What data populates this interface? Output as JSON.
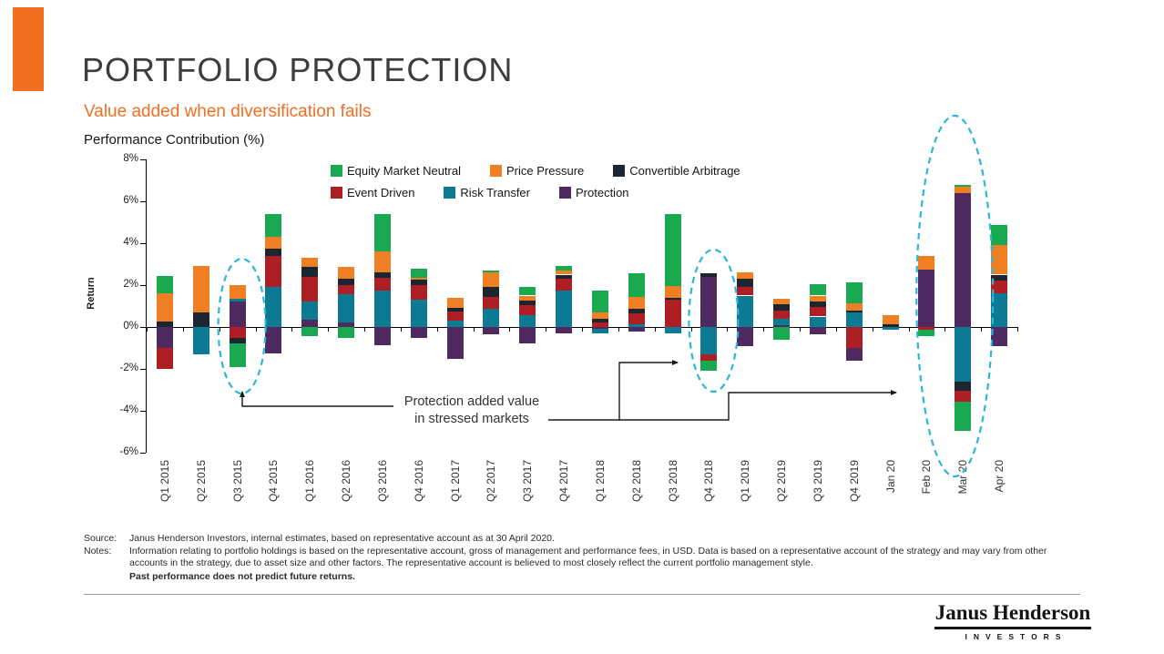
{
  "page": {
    "title": "PORTFOLIO PROTECTION",
    "subtitle": "Value added when diversification fails",
    "chart_heading": "Performance Contribution (%)"
  },
  "annotation": {
    "line1": "Protection added value",
    "line2": "in stressed markets"
  },
  "footer": {
    "source_label": "Source:",
    "source_text": "Janus Henderson Investors, internal estimates, based on representative account as at 30 April 2020.",
    "notes_label": "Notes:",
    "notes_text": "Information relating to portfolio holdings is based on the representative account, gross of management and performance fees, in USD. Data is based on a representative account of the strategy and may vary from other accounts in the strategy, due to asset size and other factors. The representative account is believed to most closely reflect the current portfolio management style.",
    "disclaimer": "Past performance does not predict future returns."
  },
  "brand": {
    "name": "Janus Henderson",
    "subtext": "INVESTORS",
    "accent_color": "#F36F21"
  },
  "chart_data": {
    "type": "bar",
    "stacked": true,
    "title": "Performance Contribution (%)",
    "ylabel": "Return",
    "ylim": [
      -6,
      8
    ],
    "grid": false,
    "legend_position": "top-inside",
    "highlight_color": "#2BB7DA",
    "highlights": [
      "Q3 2015",
      "Q4 2018",
      "Mar 20"
    ],
    "annotation": "Protection added value in stressed markets",
    "yticks": [
      {
        "v": 8,
        "label": "8%"
      },
      {
        "v": 6,
        "label": "6%"
      },
      {
        "v": 4,
        "label": "4%"
      },
      {
        "v": 2,
        "label": "2%"
      },
      {
        "v": 0,
        "label": "0%"
      },
      {
        "v": -2,
        "label": "-2%"
      },
      {
        "v": -4,
        "label": "-4%"
      },
      {
        "v": -6,
        "label": "-6%"
      }
    ],
    "series": [
      {
        "name": "Equity Market Neutral",
        "color": "#19A951"
      },
      {
        "name": "Price Pressure",
        "color": "#EE7F22"
      },
      {
        "name": "Convertible Arbitrage",
        "color": "#1C2630"
      },
      {
        "name": "Event Driven",
        "color": "#AE1F25"
      },
      {
        "name": "Risk Transfer",
        "color": "#0C7A93"
      },
      {
        "name": "Protection",
        "color": "#4E2A60"
      }
    ],
    "bars": [
      {
        "label": "Q1 2015",
        "segments": [
          {
            "s": "Convertible Arbitrage",
            "v": 0.25
          },
          {
            "s": "Price Pressure",
            "v": 1.35
          },
          {
            "s": "Equity Market Neutral",
            "v": 0.85
          },
          {
            "s": "Protection",
            "v": -1.0
          },
          {
            "s": "Event Driven",
            "v": -1.0
          }
        ]
      },
      {
        "label": "Q2 2015",
        "segments": [
          {
            "s": "Convertible Arbitrage",
            "v": 0.7
          },
          {
            "s": "Price Pressure",
            "v": 2.2
          },
          {
            "s": "Risk Transfer",
            "v": -1.3
          }
        ]
      },
      {
        "label": "Q3 2015",
        "segments": [
          {
            "s": "Protection",
            "v": 1.2
          },
          {
            "s": "Risk Transfer",
            "v": 0.15
          },
          {
            "s": "Price Pressure",
            "v": 0.65
          },
          {
            "s": "Event Driven",
            "v": -0.5
          },
          {
            "s": "Convertible Arbitrage",
            "v": -0.3
          },
          {
            "s": "Equity Market Neutral",
            "v": -1.1
          }
        ]
      },
      {
        "label": "Q4 2015",
        "segments": [
          {
            "s": "Risk Transfer",
            "v": 1.9
          },
          {
            "s": "Event Driven",
            "v": 1.5
          },
          {
            "s": "Convertible Arbitrage",
            "v": 0.35
          },
          {
            "s": "Price Pressure",
            "v": 0.55
          },
          {
            "s": "Equity Market Neutral",
            "v": 1.1
          },
          {
            "s": "Protection",
            "v": -1.25
          }
        ]
      },
      {
        "label": "Q1 2016",
        "segments": [
          {
            "s": "Protection",
            "v": 0.35
          },
          {
            "s": "Risk Transfer",
            "v": 0.85
          },
          {
            "s": "Event Driven",
            "v": 1.2
          },
          {
            "s": "Convertible Arbitrage",
            "v": 0.45
          },
          {
            "s": "Price Pressure",
            "v": 0.45
          },
          {
            "s": "Equity Market Neutral",
            "v": -0.45
          }
        ]
      },
      {
        "label": "Q2 2016",
        "segments": [
          {
            "s": "Protection",
            "v": 0.2
          },
          {
            "s": "Risk Transfer",
            "v": 1.35
          },
          {
            "s": "Event Driven",
            "v": 0.45
          },
          {
            "s": "Convertible Arbitrage",
            "v": 0.3
          },
          {
            "s": "Price Pressure",
            "v": 0.55
          },
          {
            "s": "Equity Market Neutral",
            "v": -0.5
          }
        ]
      },
      {
        "label": "Q3 2016",
        "segments": [
          {
            "s": "Risk Transfer",
            "v": 1.75
          },
          {
            "s": "Event Driven",
            "v": 0.6
          },
          {
            "s": "Convertible Arbitrage",
            "v": 0.25
          },
          {
            "s": "Price Pressure",
            "v": 1.0
          },
          {
            "s": "Equity Market Neutral",
            "v": 1.8
          },
          {
            "s": "Protection",
            "v": -0.85
          }
        ]
      },
      {
        "label": "Q4 2016",
        "segments": [
          {
            "s": "Risk Transfer",
            "v": 1.3
          },
          {
            "s": "Event Driven",
            "v": 0.7
          },
          {
            "s": "Convertible Arbitrage",
            "v": 0.25
          },
          {
            "s": "Price Pressure",
            "v": 0.1
          },
          {
            "s": "Equity Market Neutral",
            "v": 0.45
          },
          {
            "s": "Protection",
            "v": -0.5
          }
        ]
      },
      {
        "label": "Q1 2017",
        "segments": [
          {
            "s": "Risk Transfer",
            "v": 0.3
          },
          {
            "s": "Event Driven",
            "v": 0.45
          },
          {
            "s": "Convertible Arbitrage",
            "v": 0.18
          },
          {
            "s": "Price Pressure",
            "v": 0.47
          },
          {
            "s": "Protection",
            "v": -1.5
          }
        ]
      },
      {
        "label": "Q2 2017",
        "segments": [
          {
            "s": "Risk Transfer",
            "v": 0.85
          },
          {
            "s": "Event Driven",
            "v": 0.6
          },
          {
            "s": "Convertible Arbitrage",
            "v": 0.45
          },
          {
            "s": "Price Pressure",
            "v": 0.7
          },
          {
            "s": "Equity Market Neutral",
            "v": 0.1
          },
          {
            "s": "Protection",
            "v": -0.35
          }
        ]
      },
      {
        "label": "Q3 2017",
        "segments": [
          {
            "s": "Risk Transfer",
            "v": 0.55
          },
          {
            "s": "Event Driven",
            "v": 0.5
          },
          {
            "s": "Convertible Arbitrage",
            "v": 0.2
          },
          {
            "s": "Price Pressure",
            "v": 0.25
          },
          {
            "s": "Equity Market Neutral",
            "v": 0.4
          },
          {
            "s": "Protection",
            "v": -0.8
          }
        ]
      },
      {
        "label": "Q4 2017",
        "segments": [
          {
            "s": "Risk Transfer",
            "v": 1.75
          },
          {
            "s": "Event Driven",
            "v": 0.55
          },
          {
            "s": "Convertible Arbitrage",
            "v": 0.2
          },
          {
            "s": "Price Pressure",
            "v": 0.2
          },
          {
            "s": "Equity Market Neutral",
            "v": 0.2
          },
          {
            "s": "Protection",
            "v": -0.3
          }
        ]
      },
      {
        "label": "Q1 2018",
        "segments": [
          {
            "s": "Event Driven",
            "v": 0.2
          },
          {
            "s": "Convertible Arbitrage",
            "v": 0.2
          },
          {
            "s": "Price Pressure",
            "v": 0.3
          },
          {
            "s": "Equity Market Neutral",
            "v": 1.05
          },
          {
            "s": "Protection",
            "v": -0.1
          },
          {
            "s": "Risk Transfer",
            "v": -0.2
          }
        ]
      },
      {
        "label": "Q2 2018",
        "segments": [
          {
            "s": "Risk Transfer",
            "v": 0.15
          },
          {
            "s": "Event Driven",
            "v": 0.5
          },
          {
            "s": "Convertible Arbitrage",
            "v": 0.2
          },
          {
            "s": "Price Pressure",
            "v": 0.6
          },
          {
            "s": "Equity Market Neutral",
            "v": 1.1
          },
          {
            "s": "Protection",
            "v": -0.2
          }
        ]
      },
      {
        "label": "Q3 2018",
        "segments": [
          {
            "s": "Event Driven",
            "v": 1.3
          },
          {
            "s": "Convertible Arbitrage",
            "v": 0.1
          },
          {
            "s": "Price Pressure",
            "v": 0.55
          },
          {
            "s": "Equity Market Neutral",
            "v": 3.45
          },
          {
            "s": "Risk Transfer",
            "v": -0.3
          }
        ]
      },
      {
        "label": "Q4 2018",
        "segments": [
          {
            "s": "Protection",
            "v": 2.4
          },
          {
            "s": "Convertible Arbitrage",
            "v": 0.15
          },
          {
            "s": "Risk Transfer",
            "v": -1.3
          },
          {
            "s": "Event Driven",
            "v": -0.3
          },
          {
            "s": "Equity Market Neutral",
            "v": -0.5
          }
        ]
      },
      {
        "label": "Q1 2019",
        "segments": [
          {
            "s": "Risk Transfer",
            "v": 1.5
          },
          {
            "s": "Event Driven",
            "v": 0.4
          },
          {
            "s": "Convertible Arbitrage",
            "v": 0.4
          },
          {
            "s": "Price Pressure",
            "v": 0.3
          },
          {
            "s": "Protection",
            "v": -0.9
          }
        ]
      },
      {
        "label": "Q2 2019",
        "segments": [
          {
            "s": "Protection",
            "v": 0.1
          },
          {
            "s": "Risk Transfer",
            "v": 0.3
          },
          {
            "s": "Event Driven",
            "v": 0.4
          },
          {
            "s": "Convertible Arbitrage",
            "v": 0.3
          },
          {
            "s": "Price Pressure",
            "v": 0.25
          },
          {
            "s": "Equity Market Neutral",
            "v": -0.6
          }
        ]
      },
      {
        "label": "Q3 2019",
        "segments": [
          {
            "s": "Risk Transfer",
            "v": 0.5
          },
          {
            "s": "Event Driven",
            "v": 0.45
          },
          {
            "s": "Convertible Arbitrage",
            "v": 0.25
          },
          {
            "s": "Price Pressure",
            "v": 0.3
          },
          {
            "s": "Equity Market Neutral",
            "v": 0.55
          },
          {
            "s": "Protection",
            "v": -0.35
          }
        ]
      },
      {
        "label": "Q4 2019",
        "segments": [
          {
            "s": "Risk Transfer",
            "v": 0.7
          },
          {
            "s": "Convertible Arbitrage",
            "v": 0.1
          },
          {
            "s": "Price Pressure",
            "v": 0.35
          },
          {
            "s": "Equity Market Neutral",
            "v": 1.0
          },
          {
            "s": "Event Driven",
            "v": -1.0
          },
          {
            "s": "Protection",
            "v": -0.6
          }
        ]
      },
      {
        "label": "Jan 20",
        "segments": [
          {
            "s": "Convertible Arbitrage",
            "v": 0.12
          },
          {
            "s": "Price Pressure",
            "v": 0.45
          },
          {
            "s": "Risk Transfer",
            "v": -0.15
          }
        ]
      },
      {
        "label": "Feb 20",
        "segments": [
          {
            "s": "Protection",
            "v": 2.75
          },
          {
            "s": "Price Pressure",
            "v": 0.65
          },
          {
            "s": "Event Driven",
            "v": -0.15
          },
          {
            "s": "Equity Market Neutral",
            "v": -0.3
          }
        ]
      },
      {
        "label": "Mar 20",
        "segments": [
          {
            "s": "Protection",
            "v": 6.4
          },
          {
            "s": "Price Pressure",
            "v": 0.3
          },
          {
            "s": "Equity Market Neutral",
            "v": 0.1
          },
          {
            "s": "Risk Transfer",
            "v": -2.6
          },
          {
            "s": "Convertible Arbitrage",
            "v": -0.45
          },
          {
            "s": "Event Driven",
            "v": -0.5
          },
          {
            "s": "Equity Market Neutral",
            "v": -1.4
          }
        ]
      },
      {
        "label": "Apr 20",
        "segments": [
          {
            "s": "Risk Transfer",
            "v": 1.6
          },
          {
            "s": "Event Driven",
            "v": 0.6
          },
          {
            "s": "Convertible Arbitrage",
            "v": 0.3
          },
          {
            "s": "Price Pressure",
            "v": 1.4
          },
          {
            "s": "Equity Market Neutral",
            "v": 0.95
          },
          {
            "s": "Protection",
            "v": -0.9
          }
        ]
      }
    ]
  }
}
